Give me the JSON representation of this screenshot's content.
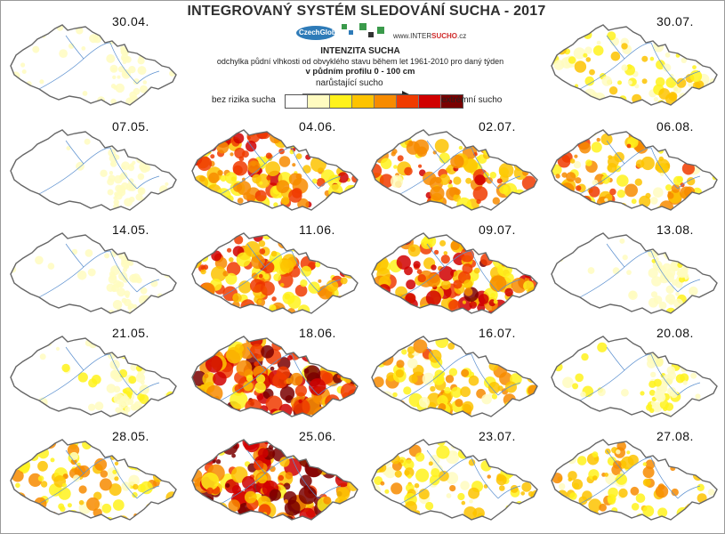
{
  "header": {
    "title": "INTEGROVANÝ SYSTÉM SLEDOVÁNÍ SUCHA - 2017",
    "logo_czechglobe": "CzechGlobe",
    "logo_url_prefix": "www.INTER",
    "logo_url_accent": "SUCHO",
    "logo_url_suffix": ".cz"
  },
  "legend": {
    "title": "INTENZITA SUCHA",
    "subtitle": "odchylka půdní vlhkosti od obvyklého stavu během let 1961-2010 pro daný týden",
    "profile": "v půdním profilu 0 - 100 cm",
    "arrow_label": "narůstající sucho",
    "low_label": "bez rizika sucha",
    "high_label": "extrémní sucho",
    "colors": [
      "#ffffff",
      "#fffbc0",
      "#fff21c",
      "#fdc300",
      "#f78b00",
      "#f03b00",
      "#d00000",
      "#7a0000"
    ]
  },
  "maps": [
    {
      "date": "30.04.",
      "intensity": 0.18
    },
    {
      "date": "07.05.",
      "intensity": 0.15
    },
    {
      "date": "14.05.",
      "intensity": 0.2
    },
    {
      "date": "21.05.",
      "intensity": 0.3
    },
    {
      "date": "28.05.",
      "intensity": 0.5
    },
    {
      "date": "04.06.",
      "intensity": 0.72
    },
    {
      "date": "11.06.",
      "intensity": 0.7
    },
    {
      "date": "18.06.",
      "intensity": 0.9
    },
    {
      "date": "25.06.",
      "intensity": 0.92
    },
    {
      "date": "02.07.",
      "intensity": 0.68
    },
    {
      "date": "09.07.",
      "intensity": 0.78
    },
    {
      "date": "16.07.",
      "intensity": 0.55
    },
    {
      "date": "23.07.",
      "intensity": 0.5
    },
    {
      "date": "30.07.",
      "intensity": 0.4
    },
    {
      "date": "06.08.",
      "intensity": 0.6
    },
    {
      "date": "13.08.",
      "intensity": 0.25
    },
    {
      "date": "20.08.",
      "intensity": 0.32
    },
    {
      "date": "27.08.",
      "intensity": 0.5
    }
  ]
}
